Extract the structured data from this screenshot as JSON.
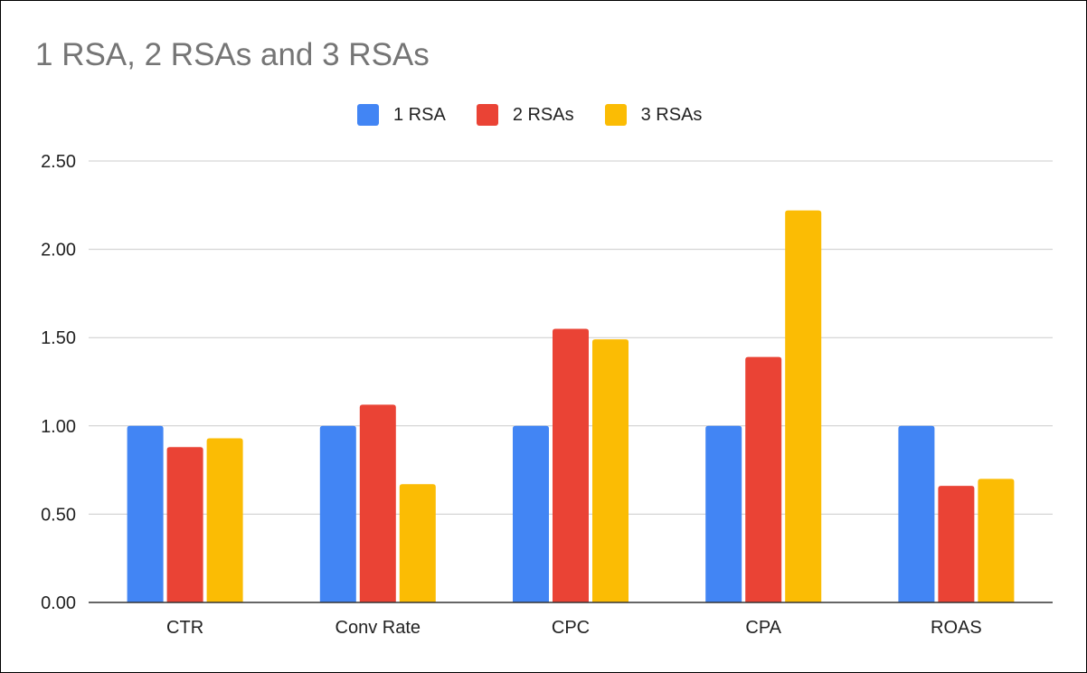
{
  "chart_data": {
    "type": "bar",
    "title": "1 RSA, 2 RSAs and 3 RSAs",
    "xlabel": "",
    "ylabel": "",
    "categories": [
      "CTR",
      "Conv Rate",
      "CPC",
      "CPA",
      "ROAS"
    ],
    "series": [
      {
        "name": "1 RSA",
        "color": "#4285F4",
        "values": [
          1.0,
          1.0,
          1.0,
          1.0,
          1.0
        ]
      },
      {
        "name": "2 RSAs",
        "color": "#EA4335",
        "values": [
          0.88,
          1.12,
          1.55,
          1.39,
          0.66
        ]
      },
      {
        "name": "3 RSAs",
        "color": "#FBBC04",
        "values": [
          0.93,
          0.67,
          1.49,
          2.22,
          0.7
        ]
      }
    ],
    "ylim": [
      0,
      2.5
    ],
    "yticks": [
      "0.00",
      "0.50",
      "1.00",
      "1.50",
      "2.00",
      "2.50"
    ],
    "grid": true,
    "legend_position": "top-center"
  }
}
